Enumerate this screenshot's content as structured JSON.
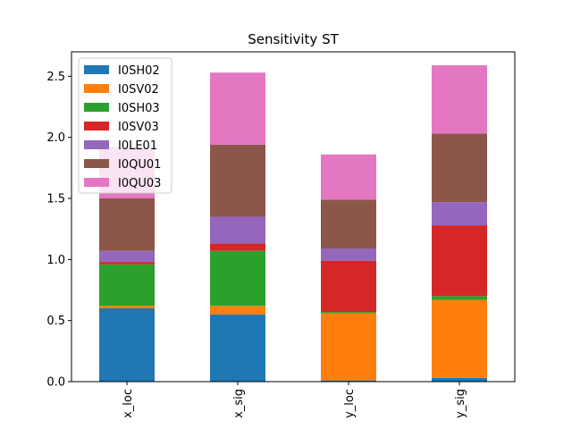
{
  "chart_data": {
    "type": "bar",
    "stacked": true,
    "title": "Sensitivity ST",
    "xlabel": "",
    "ylabel": "",
    "categories": [
      "x_loc",
      "x_sig",
      "y_loc",
      "y_sig"
    ],
    "ylim": [
      0,
      2.7
    ],
    "yticks": [
      0.0,
      0.5,
      1.0,
      1.5,
      2.0,
      2.5
    ],
    "ytick_labels": [
      "0.0",
      "0.5",
      "1.0",
      "1.5",
      "2.0",
      "2.5"
    ],
    "grid": false,
    "legend_position": "upper-left",
    "series": [
      {
        "name": "I0SH02",
        "color": "#1f77b4",
        "values": [
          0.6,
          0.55,
          0.01,
          0.03
        ]
      },
      {
        "name": "I0SV02",
        "color": "#ff7f0e",
        "values": [
          0.02,
          0.07,
          0.55,
          0.64
        ]
      },
      {
        "name": "I0SH03",
        "color": "#2ca02c",
        "values": [
          0.34,
          0.45,
          0.01,
          0.03
        ]
      },
      {
        "name": "I0SV03",
        "color": "#d62728",
        "values": [
          0.02,
          0.06,
          0.42,
          0.58
        ]
      },
      {
        "name": "I0LE01",
        "color": "#9467bd",
        "values": [
          0.09,
          0.22,
          0.1,
          0.19
        ]
      },
      {
        "name": "I0QU01",
        "color": "#8c564b",
        "values": [
          0.43,
          0.59,
          0.4,
          0.56
        ]
      },
      {
        "name": "I0QU03",
        "color": "#e377c2",
        "values": [
          0.42,
          0.59,
          0.37,
          0.56
        ]
      }
    ]
  }
}
